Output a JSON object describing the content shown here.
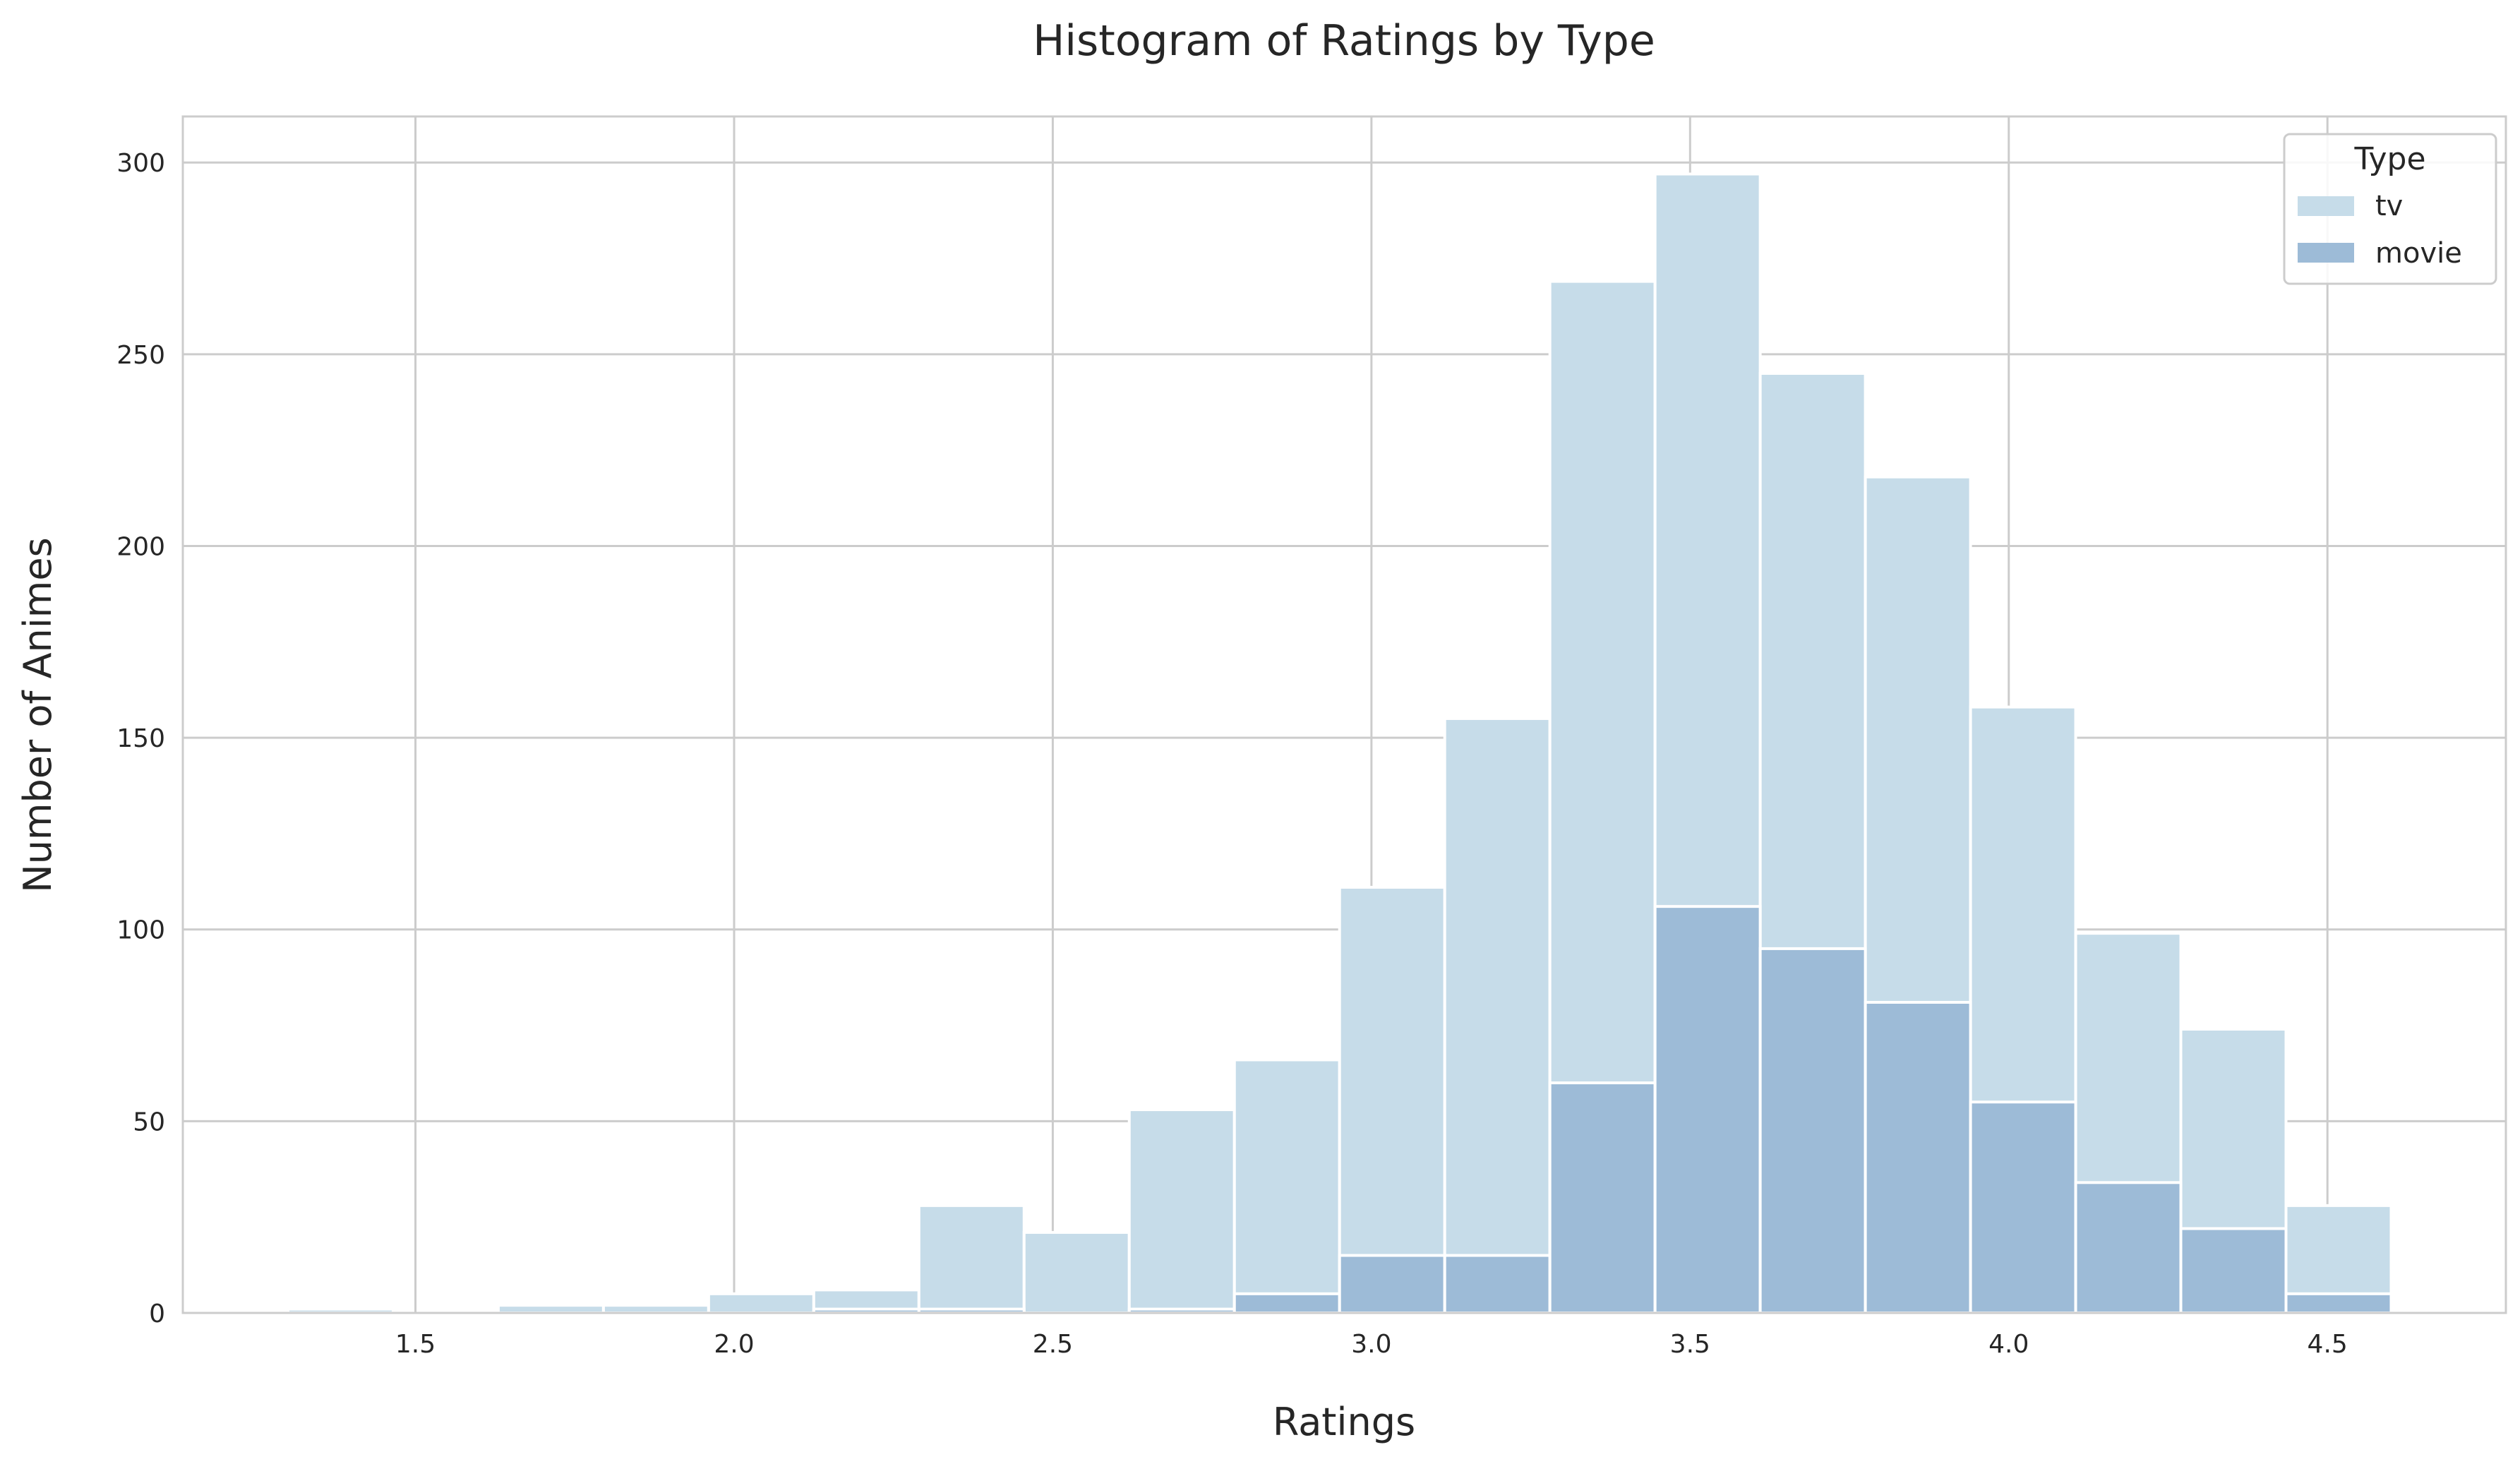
{
  "chart_data": {
    "type": "bar",
    "title": "Histogram of Ratings by Type",
    "xlabel": "Ratings",
    "ylabel": "Number of Animes",
    "xlim": [
      1.135,
      4.78
    ],
    "ylim": [
      0,
      312
    ],
    "xticks": [
      "1.5",
      "2.0",
      "2.5",
      "3.0",
      "3.5",
      "4.0",
      "4.5"
    ],
    "yticks": [
      "0",
      "50",
      "100",
      "150",
      "200",
      "250",
      "300"
    ],
    "grid": true,
    "legend": {
      "title": "Type",
      "placement": "top-right"
    },
    "bin_edges": [
      1.3,
      1.465,
      1.63,
      1.795,
      1.96,
      2.125,
      2.29,
      2.455,
      2.62,
      2.785,
      2.95,
      3.115,
      3.28,
      3.445,
      3.61,
      3.775,
      3.94,
      4.105,
      4.27,
      4.435,
      4.6
    ],
    "series": [
      {
        "name": "tv",
        "color": "#c6dce9",
        "values": [
          1,
          0,
          2,
          2,
          5,
          6,
          28,
          21,
          53,
          66,
          111,
          155,
          269,
          297,
          245,
          218,
          158,
          99,
          74,
          28
        ]
      },
      {
        "name": "movie",
        "color": "#9dbbd7",
        "values": [
          0,
          0,
          0,
          0,
          0,
          1,
          1,
          0,
          1,
          5,
          15,
          15,
          60,
          106,
          95,
          81,
          55,
          34,
          22,
          5
        ]
      }
    ]
  }
}
